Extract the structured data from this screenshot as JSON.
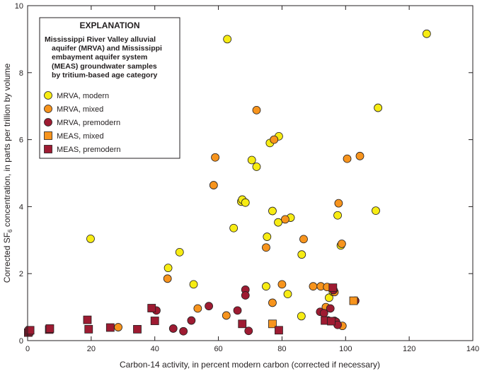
{
  "chart_data": {
    "type": "scatter",
    "xlabel": "Carbon-14 activity, in percent modern carbon (corrected if necessary)",
    "ylabel": {
      "prefix": "Corrected SF",
      "subscript": "6",
      "suffix": " concentration, in parts per trillion by volume"
    },
    "xlim": [
      0,
      140
    ],
    "ylim": [
      0,
      10
    ],
    "xticks": [
      0,
      20,
      40,
      60,
      80,
      100,
      120,
      140
    ],
    "yticks": [
      0,
      2,
      4,
      6,
      8,
      10
    ],
    "grid": false,
    "legend": {
      "placement": "top-left",
      "heading": "EXPLANATION",
      "subtitle_lines": [
        "Mississippi River Valley alluvial",
        "aquifer (MRVA) and Mississippi",
        "embayment aquifer system",
        "(MEAS) groundwater samples",
        "by tritium-based age category"
      ]
    },
    "series": [
      {
        "name": "MRVA, modern",
        "marker": "circle",
        "color": "#f7ec13",
        "points": [
          [
            19.8,
            3.04
          ],
          [
            44.2,
            2.17
          ],
          [
            47.8,
            2.64
          ],
          [
            52.2,
            1.68
          ],
          [
            62.8,
            9.0
          ],
          [
            64.8,
            3.36
          ],
          [
            67.2,
            4.15
          ],
          [
            67.5,
            4.21
          ],
          [
            68.5,
            4.12
          ],
          [
            70.5,
            5.39
          ],
          [
            72.0,
            5.19
          ],
          [
            75.0,
            1.62
          ],
          [
            75.3,
            3.1
          ],
          [
            76.2,
            5.9
          ],
          [
            77.0,
            3.87
          ],
          [
            78.8,
            3.53
          ],
          [
            79.0,
            6.1
          ],
          [
            81.8,
            1.39
          ],
          [
            82.7,
            3.67
          ],
          [
            86.1,
            0.73
          ],
          [
            86.2,
            2.57
          ],
          [
            94.8,
            1.28
          ],
          [
            96.0,
            1.46
          ],
          [
            97.5,
            3.74
          ],
          [
            98.5,
            2.84
          ],
          [
            109.5,
            3.88
          ],
          [
            110.2,
            6.95
          ],
          [
            125.5,
            9.16
          ]
        ]
      },
      {
        "name": "MRVA, mixed",
        "marker": "circle",
        "color": "#f7941d",
        "points": [
          [
            28.5,
            0.4
          ],
          [
            44.0,
            1.85
          ],
          [
            53.5,
            0.96
          ],
          [
            58.5,
            4.64
          ],
          [
            59.0,
            5.47
          ],
          [
            62.5,
            0.75
          ],
          [
            72.0,
            6.88
          ],
          [
            75.0,
            2.78
          ],
          [
            77.0,
            1.13
          ],
          [
            77.5,
            6.0
          ],
          [
            80.0,
            1.68
          ],
          [
            81.0,
            3.62
          ],
          [
            86.8,
            3.03
          ],
          [
            89.8,
            1.62
          ],
          [
            92.2,
            1.62
          ],
          [
            93.8,
            1.0
          ],
          [
            94.2,
            1.6
          ],
          [
            96.5,
            1.45
          ],
          [
            97.8,
            4.1
          ],
          [
            98.8,
            2.89
          ],
          [
            99.0,
            0.44
          ],
          [
            100.5,
            5.43
          ],
          [
            104.5,
            5.51
          ],
          [
            103.0,
            1.19
          ]
        ]
      },
      {
        "name": "MRVA, premodern",
        "marker": "circle",
        "color": "#9e1b32",
        "points": [
          [
            40.5,
            0.9
          ],
          [
            45.8,
            0.36
          ],
          [
            49.0,
            0.28
          ],
          [
            51.5,
            0.6
          ],
          [
            57.0,
            1.03
          ],
          [
            66.0,
            0.9
          ],
          [
            68.5,
            1.52
          ],
          [
            68.5,
            1.35
          ],
          [
            69.5,
            0.29
          ],
          [
            92.0,
            0.86
          ],
          [
            93.2,
            0.82
          ],
          [
            94.5,
            0.6
          ],
          [
            95.2,
            0.96
          ],
          [
            96.5,
            0.59
          ],
          [
            97.0,
            0.56
          ],
          [
            97.5,
            0.47
          ],
          [
            96.2,
            1.51
          ],
          [
            103.0,
            1.19
          ]
        ]
      },
      {
        "name": "MEAS, mixed",
        "marker": "square",
        "color": "#f7941d",
        "points": [
          [
            77.0,
            0.5
          ],
          [
            102.5,
            1.19
          ]
        ]
      },
      {
        "name": "MEAS, premodern",
        "marker": "square",
        "color": "#9e1b32",
        "points": [
          [
            0.2,
            0.24
          ],
          [
            0.5,
            0.28
          ],
          [
            0.8,
            0.31
          ],
          [
            6.8,
            0.33
          ],
          [
            7.0,
            0.36
          ],
          [
            18.8,
            0.62
          ],
          [
            19.2,
            0.34
          ],
          [
            26.0,
            0.39
          ],
          [
            34.5,
            0.34
          ],
          [
            39.0,
            0.97
          ],
          [
            40.0,
            0.59
          ],
          [
            67.5,
            0.5
          ],
          [
            79.0,
            0.31
          ],
          [
            93.5,
            0.6
          ],
          [
            95.5,
            0.58
          ],
          [
            96.0,
            1.58
          ]
        ]
      }
    ]
  }
}
